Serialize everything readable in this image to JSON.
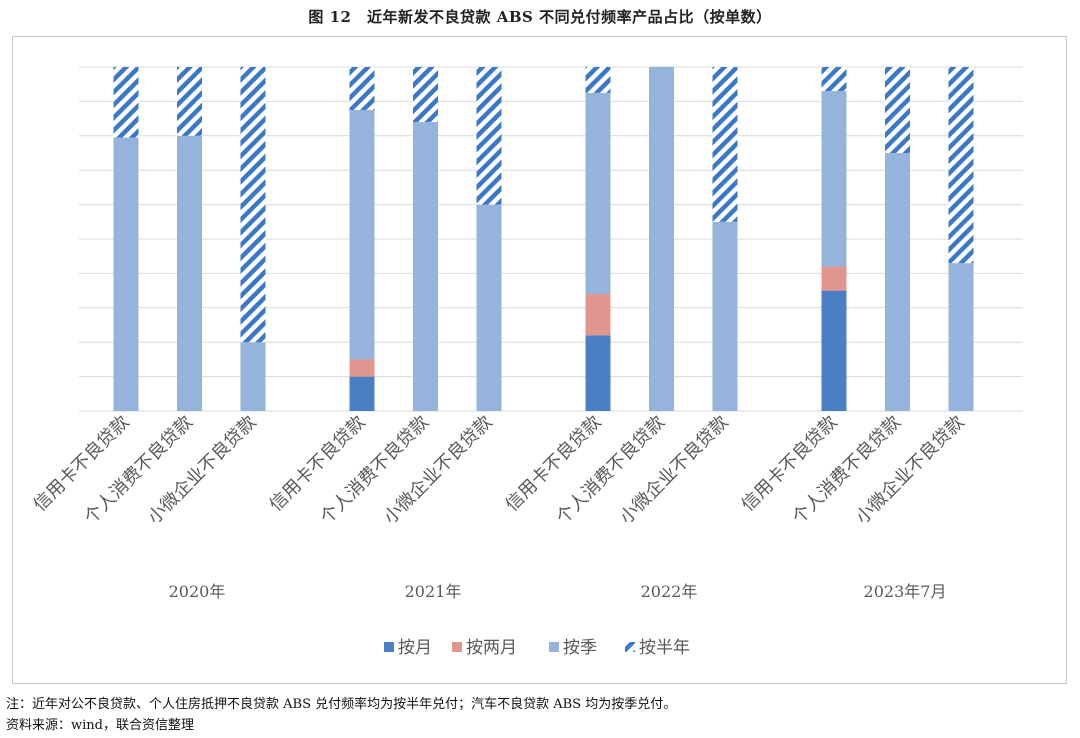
{
  "figure": {
    "title": "图 12　近年新发不良贷款 ABS 不同兑付频率产品占比（按单数）"
  },
  "notes": {
    "note": "注：近年对公不良贷款、个人住房抵押不良贷款 ABS 兑付频率均为按半年兑付；汽车不良贷款 ABS 均为按季兑付。",
    "source": "资料来源：wind，联合资信整理"
  },
  "colors": {
    "monthly": "#4a7fc1",
    "bimonthly": "#e0958f",
    "quarterly": "#96b3dc",
    "semiannual": "#3d78c4",
    "grid": "#d9d9d9",
    "axis_text": "#595959"
  },
  "chart_data": {
    "type": "bar",
    "stacked": true,
    "percent_stacked": true,
    "grid": true,
    "legend_position": "bottom",
    "ylim": [
      0,
      100
    ],
    "groups": [
      {
        "label": "2020年",
        "categories": [
          "信用卡不良贷款",
          "个人消费不良贷款",
          "小微企业不良贷款"
        ]
      },
      {
        "label": "2021年",
        "categories": [
          "信用卡不良贷款",
          "个人消费不良贷款",
          "小微企业不良贷款"
        ]
      },
      {
        "label": "2022年",
        "categories": [
          "信用卡不良贷款",
          "个人消费不良贷款",
          "小微企业不良贷款"
        ]
      },
      {
        "label": "2023年7月",
        "categories": [
          "信用卡不良贷款",
          "个人消费不良贷款",
          "小微企业不良贷款"
        ]
      }
    ],
    "series": [
      {
        "name": "按月",
        "pattern": "solid",
        "values": [
          0,
          0,
          0,
          10,
          0,
          0,
          22,
          0,
          0,
          35,
          0,
          0
        ]
      },
      {
        "name": "按两月",
        "pattern": "solid",
        "values": [
          0,
          0,
          0,
          5,
          0,
          0,
          12,
          0,
          0,
          7,
          0,
          0
        ]
      },
      {
        "name": "按季",
        "pattern": "solid",
        "values": [
          79.5,
          80,
          20,
          72.5,
          84,
          60,
          58.5,
          100,
          55,
          51,
          75,
          43
        ]
      },
      {
        "name": "按半年",
        "pattern": "hatch",
        "values": [
          20.5,
          20,
          80,
          12.5,
          16,
          40,
          7.5,
          0,
          45,
          7,
          25,
          57
        ]
      }
    ]
  }
}
